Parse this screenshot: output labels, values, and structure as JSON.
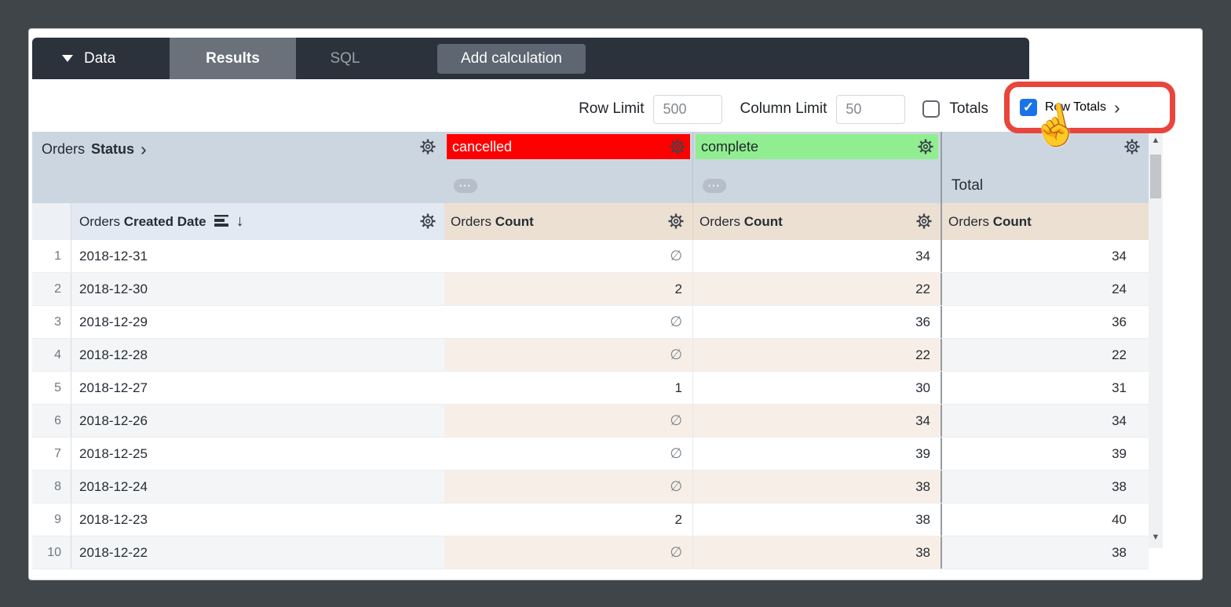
{
  "navbar": {
    "data_menu_label": "Data",
    "tabs": [
      {
        "label": "Results",
        "active": true
      },
      {
        "label": "SQL",
        "active": false
      }
    ],
    "add_calculation_label": "Add calculation"
  },
  "controls": {
    "row_limit": {
      "label": "Row Limit",
      "value": "500"
    },
    "column_limit": {
      "label": "Column Limit",
      "value": "50"
    },
    "totals": {
      "label": "Totals",
      "checked": false
    },
    "row_totals": {
      "label": "Row Totals",
      "checked": true
    }
  },
  "colors": {
    "cancelled_bg": "#ff0000",
    "cancelled_text": "#ffffff",
    "complete_bg": "#90ee90",
    "complete_text": "#1f262c",
    "annotation_red": "#e8453c",
    "checkbox_blue": "#1a73e8",
    "navbar_bg": "#2b323c",
    "pivot_header_bg": "#ccd6e1",
    "measure_header_bg": "#ece0d3"
  },
  "icons": {
    "caret_down": "▼",
    "chevron_right": "›",
    "sort_desc_arrow": "↓",
    "checkmark": "✓",
    "scroll_up": "▲",
    "scroll_down": "▼",
    "ellipsis": "•••",
    "hand_cursor": "☝"
  },
  "table": {
    "pivot_header": {
      "view": "Orders",
      "field": "Status"
    },
    "pivot_values": [
      {
        "label": "cancelled"
      },
      {
        "label": "complete"
      }
    ],
    "total_header": "Total",
    "dimension_header": {
      "view": "Orders",
      "field": "Created Date"
    },
    "measure_header": {
      "view": "Orders",
      "field": "Count"
    },
    "null_symbol": "∅",
    "rows": [
      {
        "n": 1,
        "date": "2018-12-31",
        "cancelled": null,
        "complete": 34,
        "total": 34
      },
      {
        "n": 2,
        "date": "2018-12-30",
        "cancelled": 2,
        "complete": 22,
        "total": 24
      },
      {
        "n": 3,
        "date": "2018-12-29",
        "cancelled": null,
        "complete": 36,
        "total": 36
      },
      {
        "n": 4,
        "date": "2018-12-28",
        "cancelled": null,
        "complete": 22,
        "total": 22
      },
      {
        "n": 5,
        "date": "2018-12-27",
        "cancelled": 1,
        "complete": 30,
        "total": 31
      },
      {
        "n": 6,
        "date": "2018-12-26",
        "cancelled": null,
        "complete": 34,
        "total": 34
      },
      {
        "n": 7,
        "date": "2018-12-25",
        "cancelled": null,
        "complete": 39,
        "total": 39
      },
      {
        "n": 8,
        "date": "2018-12-24",
        "cancelled": null,
        "complete": 38,
        "total": 38
      },
      {
        "n": 9,
        "date": "2018-12-23",
        "cancelled": 2,
        "complete": 38,
        "total": 40
      },
      {
        "n": 10,
        "date": "2018-12-22",
        "cancelled": null,
        "complete": 38,
        "total": 38
      }
    ]
  }
}
